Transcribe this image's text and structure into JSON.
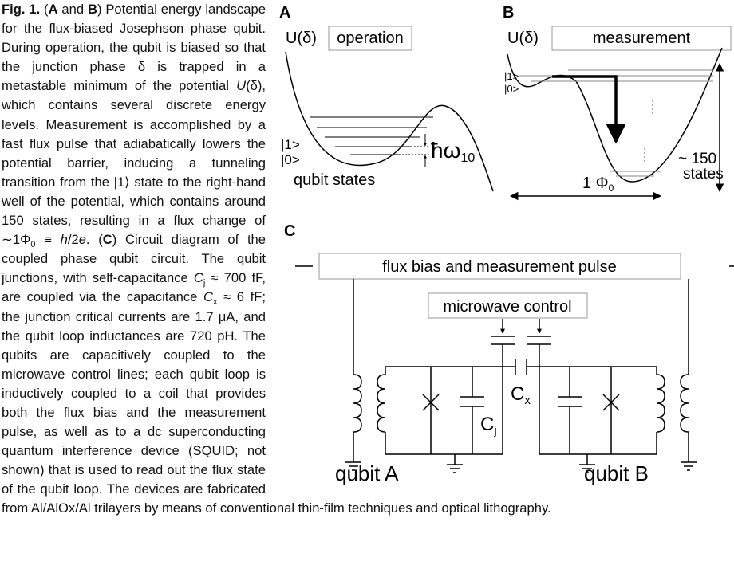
{
  "caption": [
    {
      "text": "Fig. 1.",
      "style": "bold"
    },
    {
      "text": " ("
    },
    {
      "text": "A",
      "style": "bold"
    },
    {
      "text": " and "
    },
    {
      "text": "B",
      "style": "bold"
    },
    {
      "text": ") Potential energy landscape for the flux-biased Josephson phase qubit. During operation, the qubit is biased so that the junction phase δ is trapped in a metastable minimum of the potential "
    },
    {
      "text": "U",
      "style": "italic"
    },
    {
      "text": "(δ), which contains several discrete energy levels. Measurement is accomplished by a fast flux pulse that adiabatically lowers the potential barrier, inducing a tunneling transition from the |1⟩ state to the right-hand well of the potential, which contains around 150 states, resulting in a flux change of ∼1Φ"
    },
    {
      "text": "0",
      "style": "sub"
    },
    {
      "text": " ≡ "
    },
    {
      "text": "h",
      "style": "italic"
    },
    {
      "text": "/2"
    },
    {
      "text": "e",
      "style": "italic"
    },
    {
      "text": ". ("
    },
    {
      "text": "C",
      "style": "bold"
    },
    {
      "text": ") Circuit diagram of the coupled phase qubit circuit. The qubit junctions, with self-capacitance "
    },
    {
      "text": "C",
      "style": "italic"
    },
    {
      "text": "j",
      "style": "sub"
    },
    {
      "text": " ≈ 700 fF, are coupled via the capacitance "
    },
    {
      "text": "C",
      "style": "italic"
    },
    {
      "text": "x",
      "style": "sub"
    },
    {
      "text": " ≈ 6 fF; the junction critical currents are 1.7 μA, and the qubit loop inductances are 720 pH. The qubits are capacitively coupled to the microwave control lines; each qubit loop is inductively coupled to a coil that provides both the flux bias and the measurement pulse, as well as to a dc superconducting quantum interference device (SQUID; not shown) that is used to read out the flux state of the qubit loop. The devices are fabricated from Al/AlOx/Al trilayers by means of conventional thin-film techniques and optical lithography."
    }
  ],
  "panels": {
    "A": {
      "label": "A",
      "potential": "U(δ)",
      "mode": "operation",
      "state1": "|1>",
      "state0": "|0>",
      "spacing": {
        "text": "ħω",
        "sub": "10"
      },
      "states": "qubit states"
    },
    "B": {
      "label": "B",
      "potential": "U(δ)",
      "mode": "measurement",
      "state1": "|1>",
      "state0": "|0>",
      "count": "~ 150",
      "states": "states",
      "flux": {
        "text": "1 Φ",
        "sub": "0"
      }
    },
    "C": {
      "label": "C",
      "flux_box": "flux bias and measurement pulse",
      "microwave_box": "microwave control",
      "cx": {
        "text": "C",
        "sub": "x"
      },
      "cj": {
        "text": "C",
        "sub": "j"
      },
      "qubit_a": "qubit A",
      "qubit_b": "qubit B"
    }
  }
}
